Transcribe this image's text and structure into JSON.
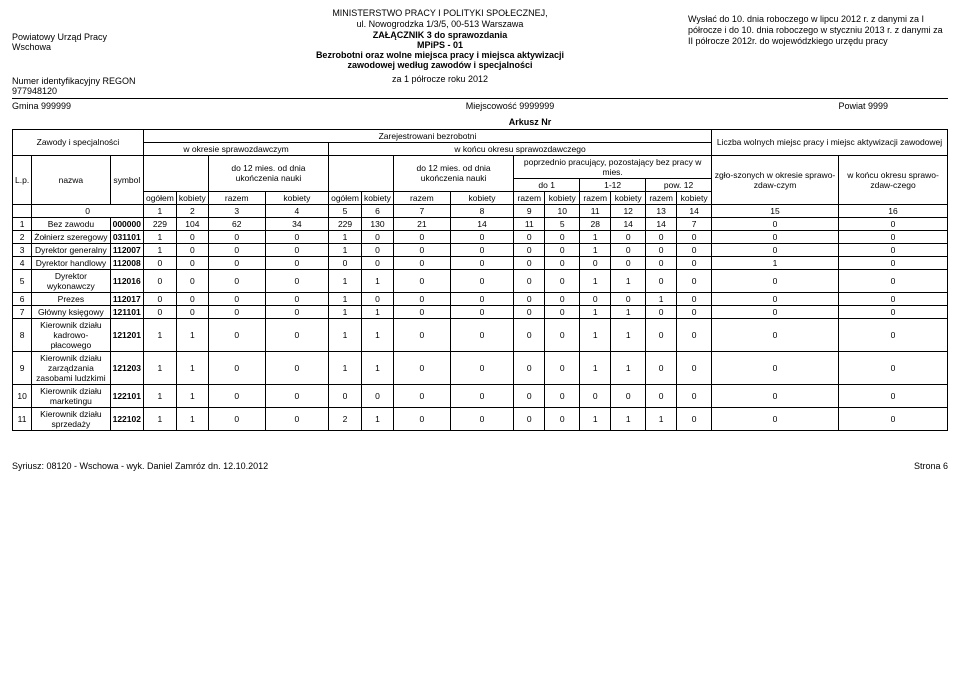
{
  "header": {
    "left_line1": "Powiatowy Urząd Pracy",
    "left_line2": "Wschowa",
    "ministry1": "MINISTERSTWO PRACY I POLITYKI SPOŁECZNEJ,",
    "ministry2": "ul. Nowogrodzka 1/3/5, 00-513 Warszawa",
    "zalacznik1": "ZAŁĄCZNIK 3 do sprawozdania",
    "zalacznik2": "MPiPS - 01",
    "subtitle1": "Bezrobotni oraz wolne miejsca pracy i miejsca aktywizacji",
    "subtitle2": "zawodowej według zawodów i specjalności",
    "right_text": "Wysłać do 10. dnia roboczego w lipcu 2012 r. z danymi za I półrocze i do 10. dnia roboczego w styczniu 2013 r. z danymi za II półrocze 2012r. do wojewódzkiego urzędu pracy",
    "regon_label": "Numer identyfikacyjny REGON",
    "regon_value": "977948120",
    "period": "za 1 półrocze  roku 2012",
    "gmina": "Gmina 999999",
    "miejscowosc": "Miejscowość 9999999",
    "powiat": "Powiat 9999",
    "arkusz": "Arkusz Nr"
  },
  "thead": {
    "zawody": "Zawody i specjalności",
    "zareg": "Zarejestrowani bezrobotni",
    "liczba_wolnych": "Liczba wolnych miejsc pracy i miejsc aktywizacji zawodowej",
    "lp": "L.p.",
    "nazwa": "nazwa",
    "symbol": "symbol",
    "w_okresie": "w okresie sprawozdawczym",
    "w_koncu": "w końcu okresu sprawozdawczego",
    "do12": "do 12 mies. od dnia ukończenia nauki",
    "poprzednio": "poprzednio pracujący, pozostający bez pracy w mies.",
    "zgloszonych": "zgło-szonych w okresie sprawo-zdaw-czym",
    "w_koncu_okresu": "w końcu okresu sprawo-zdaw-czego",
    "ogolem": "ogółem",
    "kobiety": "kobiety",
    "razem": "razem",
    "do1": "do 1",
    "m1_12": "1-12",
    "pow12": "pow. 12"
  },
  "colnums": [
    "0",
    "1",
    "2",
    "3",
    "4",
    "5",
    "6",
    "7",
    "8",
    "9",
    "10",
    "11",
    "12",
    "13",
    "14",
    "15",
    "16"
  ],
  "rows": [
    {
      "lp": "1",
      "nazwa": "Bez zawodu",
      "symbol": "000000",
      "d": [
        "229",
        "104",
        "62",
        "34",
        "229",
        "130",
        "21",
        "14",
        "11",
        "5",
        "28",
        "14",
        "14",
        "7",
        "0",
        "0"
      ]
    },
    {
      "lp": "2",
      "nazwa": "Żołnierz szeregowy",
      "symbol": "031101",
      "d": [
        "1",
        "0",
        "0",
        "0",
        "1",
        "0",
        "0",
        "0",
        "0",
        "0",
        "1",
        "0",
        "0",
        "0",
        "0",
        "0"
      ]
    },
    {
      "lp": "3",
      "nazwa": "Dyrektor generalny",
      "symbol": "112007",
      "d": [
        "1",
        "0",
        "0",
        "0",
        "1",
        "0",
        "0",
        "0",
        "0",
        "0",
        "1",
        "0",
        "0",
        "0",
        "0",
        "0"
      ]
    },
    {
      "lp": "4",
      "nazwa": "Dyrektor handlowy",
      "symbol": "112008",
      "d": [
        "0",
        "0",
        "0",
        "0",
        "0",
        "0",
        "0",
        "0",
        "0",
        "0",
        "0",
        "0",
        "0",
        "0",
        "1",
        "0"
      ]
    },
    {
      "lp": "5",
      "nazwa": "Dyrektor wykonawczy",
      "symbol": "112016",
      "d": [
        "0",
        "0",
        "0",
        "0",
        "1",
        "1",
        "0",
        "0",
        "0",
        "0",
        "1",
        "1",
        "0",
        "0",
        "0",
        "0"
      ]
    },
    {
      "lp": "6",
      "nazwa": "Prezes",
      "symbol": "112017",
      "d": [
        "0",
        "0",
        "0",
        "0",
        "1",
        "0",
        "0",
        "0",
        "0",
        "0",
        "0",
        "0",
        "1",
        "0",
        "0",
        "0"
      ]
    },
    {
      "lp": "7",
      "nazwa": "Główny księgowy",
      "symbol": "121101",
      "d": [
        "0",
        "0",
        "0",
        "0",
        "1",
        "1",
        "0",
        "0",
        "0",
        "0",
        "1",
        "1",
        "0",
        "0",
        "0",
        "0"
      ]
    },
    {
      "lp": "8",
      "nazwa": "Kierownik działu kadrowo-płacowego",
      "symbol": "121201",
      "d": [
        "1",
        "1",
        "0",
        "0",
        "1",
        "1",
        "0",
        "0",
        "0",
        "0",
        "1",
        "1",
        "0",
        "0",
        "0",
        "0"
      ]
    },
    {
      "lp": "9",
      "nazwa": "Kierownik działu zarządzania zasobami ludzkimi",
      "symbol": "121203",
      "d": [
        "1",
        "1",
        "0",
        "0",
        "1",
        "1",
        "0",
        "0",
        "0",
        "0",
        "1",
        "1",
        "0",
        "0",
        "0",
        "0"
      ]
    },
    {
      "lp": "10",
      "nazwa": "Kierownik działu marketingu",
      "symbol": "122101",
      "d": [
        "1",
        "1",
        "0",
        "0",
        "0",
        "0",
        "0",
        "0",
        "0",
        "0",
        "0",
        "0",
        "0",
        "0",
        "0",
        "0"
      ]
    },
    {
      "lp": "11",
      "nazwa": "Kierownik działu sprzedaży",
      "symbol": "122102",
      "d": [
        "1",
        "1",
        "0",
        "0",
        "2",
        "1",
        "0",
        "0",
        "0",
        "0",
        "1",
        "1",
        "1",
        "0",
        "0",
        "0"
      ]
    }
  ],
  "footer": {
    "left": "Syriusz: 08120 - Wschowa - wyk. Daniel Zamróz dn. 12.10.2012",
    "right": "Strona 6"
  }
}
